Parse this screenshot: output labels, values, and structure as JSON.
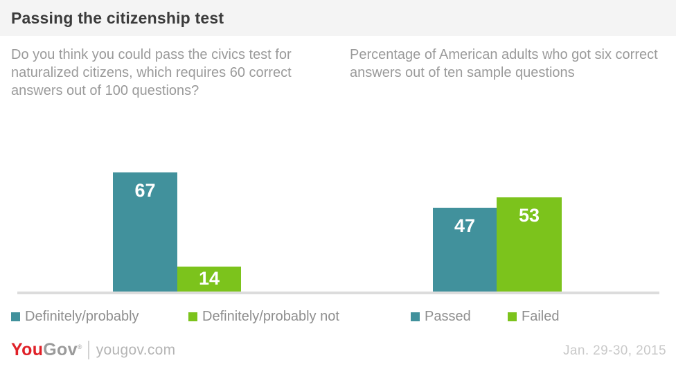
{
  "header": {
    "title": "Passing the citizenship test"
  },
  "chart_data": [
    {
      "type": "bar",
      "title": "Do you think you could pass the civics test for naturalized citizens, which requires 60 correct answers out of 100 questions?",
      "categories": [
        "Definitely/probably",
        "Definitely/probably not"
      ],
      "values": [
        67,
        14
      ],
      "colors": [
        "#41919c",
        "#7cc31c"
      ],
      "ylim": [
        0,
        80
      ],
      "grid": false,
      "legend_position": "bottom",
      "value_labels": "inside-top, white bold"
    },
    {
      "type": "bar",
      "title": "Percentage of American adults who got six correct answers out of ten sample questions",
      "categories": [
        "Passed",
        "Failed"
      ],
      "values": [
        47,
        53
      ],
      "colors": [
        "#41919c",
        "#7cc31c"
      ],
      "ylim": [
        0,
        80
      ],
      "grid": false,
      "legend_position": "bottom",
      "value_labels": "inside-top, white bold"
    }
  ],
  "colors": {
    "teal": "#41919c",
    "green": "#7cc31c",
    "header_bg": "#f4f4f4",
    "axis_line": "#dcdcdc",
    "logo_red": "#e02128"
  },
  "footer": {
    "logo_you": "You",
    "logo_gov": "Gov",
    "logo_mark": "®",
    "site": "yougov.com",
    "date": "Jan. 29-30, 2015"
  }
}
